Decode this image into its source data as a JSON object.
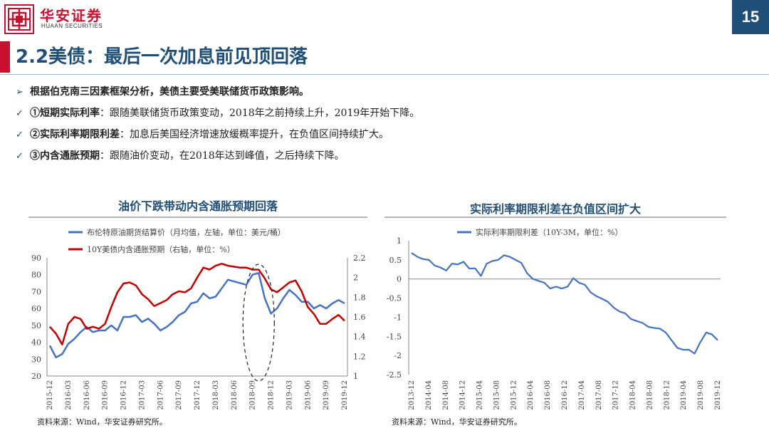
{
  "brand": {
    "name_cn": "华安证券",
    "name_en": "HUAAN SECURITIES"
  },
  "page_number": "15",
  "slide_title": "2.2美债：最后一次加息前见顶回落",
  "bullets": [
    {
      "marker": "➢",
      "bold": "根据伯克南三因素框架分析，美债主要受美联储货币政策影响。",
      "text": ""
    },
    {
      "marker": "✓",
      "bold": "①短期实际利率",
      "text": "：跟随美联储货币政策变动，2018年之前持续上升，2019年开始下降。"
    },
    {
      "marker": "✓",
      "bold": "②实际利率期限利差",
      "text": "：加息后美国经济增速放缓概率提升，在负值区间持续扩大。"
    },
    {
      "marker": "✓",
      "bold": "③内含通胀预期",
      "text": "：跟随油价变动，在2018年达到峰值，之后持续下降。"
    }
  ],
  "colors": {
    "brand_red": "#c8102e",
    "title_blue": "#1f4e79",
    "series_blue": "#4472c4",
    "series_red": "#c00000"
  },
  "chart_data": [
    {
      "type": "line",
      "title": "油价下跌带动内含通胀预期回落",
      "source": "资料来源：Wind，华安证券研究所。",
      "x_tick_labels": [
        "2015-12",
        "2016-03",
        "2016-06",
        "2016-09",
        "2016-12",
        "2017-03",
        "2017-06",
        "2017-09",
        "2017-12",
        "2018-03",
        "2018-06",
        "2018-09",
        "2018-12",
        "2019-03",
        "2019-06",
        "2019-09",
        "2019-12"
      ],
      "y_left": {
        "min": 20,
        "max": 90,
        "ticks": [
          20,
          30,
          40,
          50,
          60,
          70,
          80,
          90
        ]
      },
      "y_right": {
        "min": 1,
        "max": 2.2,
        "ticks": [
          "1",
          "1.2",
          "1.4",
          "1.6",
          "1.8",
          "2",
          "2.2"
        ]
      },
      "legend_position": "top-left",
      "annotation": "dashed ellipse around 2018-10",
      "series": [
        {
          "name": "布伦特原油期货结算价（月均值，左轴，单位：美元/桶）",
          "axis": "left",
          "color": "#4472c4",
          "values": [
            38,
            31,
            33,
            39,
            42,
            46,
            49,
            46,
            47,
            47,
            50,
            47,
            55,
            55,
            56,
            52,
            54,
            51,
            47,
            49,
            52,
            56,
            58,
            63,
            64,
            69,
            66,
            67,
            72,
            77,
            76,
            75,
            74,
            80,
            81,
            66,
            57,
            60,
            66,
            71,
            68,
            64,
            64,
            60,
            62,
            60,
            63,
            65,
            63
          ]
        },
        {
          "name": "10Y美债内含通胀预期（右轴，单位：%）",
          "axis": "right",
          "color": "#c00000",
          "values": [
            1.5,
            1.43,
            1.32,
            1.53,
            1.6,
            1.58,
            1.48,
            1.5,
            1.48,
            1.53,
            1.7,
            1.85,
            1.94,
            1.95,
            1.92,
            1.83,
            1.78,
            1.71,
            1.74,
            1.77,
            1.83,
            1.86,
            1.85,
            1.89,
            2.0,
            2.1,
            2.08,
            2.12,
            2.14,
            2.12,
            2.11,
            2.1,
            2.1,
            2.08,
            2.08,
            1.99,
            1.88,
            1.85,
            1.9,
            1.95,
            1.97,
            1.86,
            1.7,
            1.63,
            1.53,
            1.53,
            1.58,
            1.62,
            1.56
          ]
        }
      ]
    },
    {
      "type": "line",
      "title": "实际利率期限利差在负值区间扩大",
      "source": "资料来源：Wind，华安证券研究所。",
      "x_tick_labels": [
        "2013-12",
        "2014-04",
        "2014-08",
        "2014-12",
        "2015-04",
        "2015-08",
        "2015-12",
        "2016-04",
        "2016-08",
        "2016-12",
        "2017-04",
        "2017-08",
        "2017-12",
        "2018-04",
        "2018-08",
        "2018-12",
        "2019-04",
        "2019-08",
        "2019-12"
      ],
      "y": {
        "min": -2.5,
        "max": 1,
        "ticks": [
          "1",
          "0.5",
          "0",
          "-0.5",
          "-1",
          "-1.5",
          "-2",
          "-2.5"
        ]
      },
      "legend_position": "top-center",
      "series": [
        {
          "name": "实际利率期限利差（10Y-3M，单位：%）",
          "color": "#4472c4",
          "values": [
            0.68,
            0.58,
            0.52,
            0.5,
            0.35,
            0.3,
            0.22,
            0.4,
            0.38,
            0.45,
            0.27,
            0.28,
            0.08,
            0.4,
            0.47,
            0.5,
            0.62,
            0.58,
            0.5,
            0.42,
            0.15,
            0.0,
            -0.05,
            -0.1,
            -0.25,
            -0.2,
            -0.25,
            -0.2,
            0.02,
            -0.1,
            -0.15,
            -0.35,
            -0.45,
            -0.52,
            -0.6,
            -0.75,
            -0.85,
            -0.9,
            -1.05,
            -1.1,
            -1.15,
            -1.25,
            -1.28,
            -1.3,
            -1.4,
            -1.6,
            -1.8,
            -1.85,
            -1.85,
            -1.95,
            -1.65,
            -1.4,
            -1.45,
            -1.6
          ]
        }
      ]
    }
  ]
}
